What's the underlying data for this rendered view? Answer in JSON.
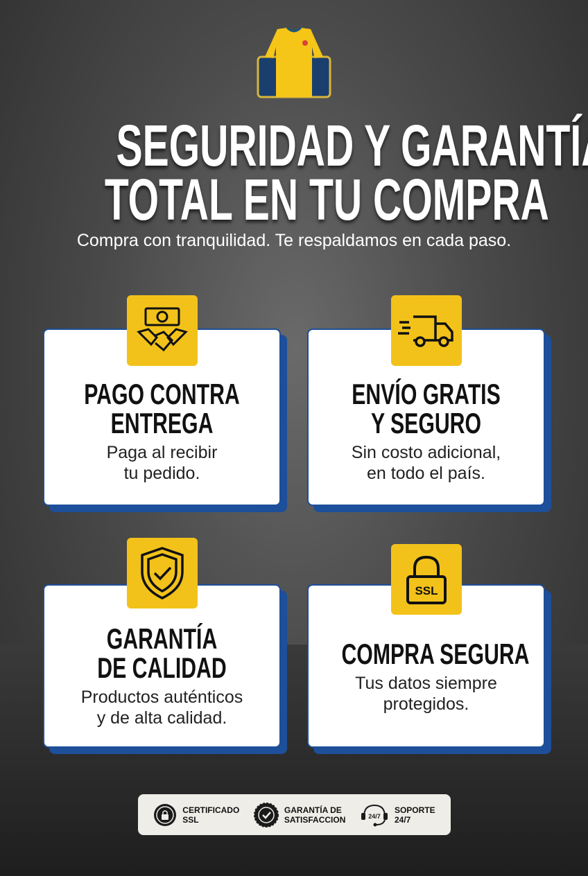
{
  "header": {
    "title_line1": "SEGURIDAD Y GARANTÍA",
    "title_line2": "TOTAL EN TU COMPRA",
    "subtitle": "Compra con tranquilidad. Te respaldamos en cada paso."
  },
  "colors": {
    "accent": "#f2c21b",
    "card_border": "#1d4f9a"
  },
  "features": [
    {
      "icon": "handshake-money-icon",
      "title1": "PAGO CONTRA",
      "title2": "ENTREGA",
      "text1": "Paga al recibir",
      "text2": "tu pedido."
    },
    {
      "icon": "delivery-truck-icon",
      "title1": "ENVÍO GRATIS",
      "title2": "Y SEGURO",
      "text1": "Sin costo adicional,",
      "text2": "en todo el país."
    },
    {
      "icon": "shield-check-icon",
      "title1": "GARANTÍA",
      "title2": "DE CALIDAD",
      "text1": "Productos auténticos",
      "text2": "y de alta calidad."
    },
    {
      "icon": "ssl-lock-icon",
      "icon_text": "SSL",
      "title1": "COMPRA SEGURA",
      "text1": "Tus datos siempre",
      "text2": "protegidos."
    }
  ],
  "badges": [
    {
      "icon": "lock-seal-icon",
      "line1": "CERTIFICADO",
      "line2": "SSL"
    },
    {
      "icon": "check-seal-icon",
      "line1": "GARANTÍA DE",
      "line2": "SATISFACCION"
    },
    {
      "icon": "headset-icon",
      "icon_text": "24/7",
      "line1": "SOPORTE",
      "line2": "24/7"
    }
  ]
}
